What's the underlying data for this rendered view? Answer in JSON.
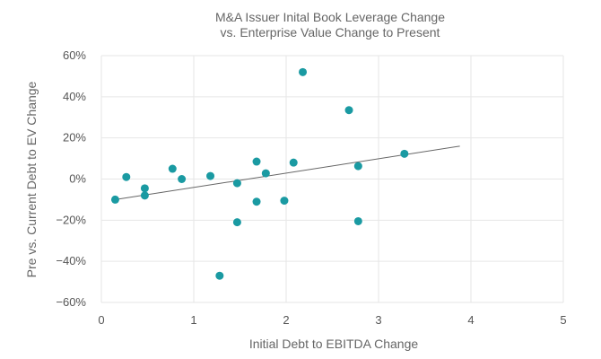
{
  "chart_data": {
    "type": "scatter",
    "title_lines": [
      "M&A Issuer Inital Book Leverage Change",
      "vs. Enterprise Value Change to Present"
    ],
    "xlabel": "Initial Debt to EBITDA Change",
    "ylabel": "Pre vs. Current Debt to EV Change",
    "xlim": [
      0,
      5
    ],
    "ylim": [
      -0.6,
      0.6
    ],
    "x_ticks": [
      0,
      1,
      2,
      3,
      4,
      5
    ],
    "x_tick_labels": [
      "0",
      "1",
      "2",
      "3",
      "4",
      "5"
    ],
    "y_ticks": [
      0.6,
      0.4,
      0.2,
      0,
      -0.2,
      -0.4,
      -0.6
    ],
    "y_tick_labels": [
      "60%",
      "40%",
      "20%",
      "0%",
      "−20%",
      "−40%",
      "−60%"
    ],
    "grid": true,
    "point_color": "#1a9aa2",
    "trendline_color": "#666666",
    "points": [
      {
        "x": 0.15,
        "y": -0.1
      },
      {
        "x": 0.27,
        "y": 0.01
      },
      {
        "x": 0.47,
        "y": -0.045
      },
      {
        "x": 0.47,
        "y": -0.08
      },
      {
        "x": 0.77,
        "y": 0.05
      },
      {
        "x": 0.87,
        "y": 0.0
      },
      {
        "x": 1.18,
        "y": 0.015
      },
      {
        "x": 1.28,
        "y": -0.47
      },
      {
        "x": 1.47,
        "y": -0.02
      },
      {
        "x": 1.47,
        "y": -0.21
      },
      {
        "x": 1.68,
        "y": 0.085
      },
      {
        "x": 1.68,
        "y": -0.11
      },
      {
        "x": 1.78,
        "y": 0.028
      },
      {
        "x": 1.98,
        "y": -0.105
      },
      {
        "x": 2.08,
        "y": 0.08
      },
      {
        "x": 2.18,
        "y": 0.52
      },
      {
        "x": 2.68,
        "y": 0.335
      },
      {
        "x": 2.78,
        "y": 0.063
      },
      {
        "x": 2.78,
        "y": -0.205
      },
      {
        "x": 3.28,
        "y": 0.123
      }
    ],
    "trendline": [
      {
        "x": 0.15,
        "y": -0.1
      },
      {
        "x": 3.88,
        "y": 0.16
      }
    ]
  }
}
